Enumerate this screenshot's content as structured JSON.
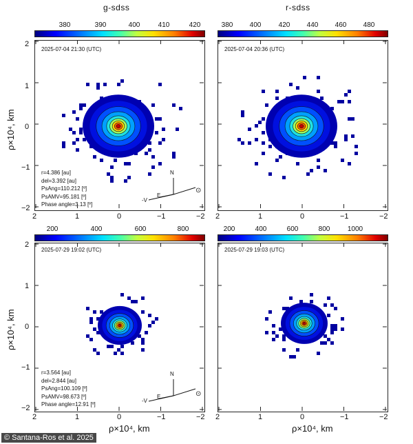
{
  "panels": [
    {
      "filter": "g-sdss",
      "cbar_ticks": [
        "380",
        "390",
        "400",
        "410",
        "420"
      ],
      "date": "2025-07-04 21:30 (UTC)",
      "info": [
        "r=4.386 [au]",
        "del=3.392 [au]",
        "PsAng=110.212 [º]",
        "PsAMV=95.181 [º]",
        "Phase angle=3.13 [º]"
      ],
      "compass": {
        "north": "N",
        "east": "E",
        "velocity": "-V",
        "sun": "⊙"
      }
    },
    {
      "filter": "r-sdss",
      "cbar_ticks": [
        "380",
        "400",
        "420",
        "440",
        "460",
        "480"
      ],
      "date": "2025-07-04 20:36 (UTC)",
      "info": [],
      "compass": null
    },
    {
      "filter": "",
      "cbar_ticks": [
        "200",
        "400",
        "600",
        "800"
      ],
      "date": "2025-07-29 19:02 (UTC)",
      "info": [
        "r=3.564 [au]",
        "del=2.844 [au]",
        "PsAng=100.109 [º]",
        "PsAMV=98.673 [º]",
        "Phase angle=12.91 [º]"
      ],
      "compass": {
        "north": "N",
        "east": "E",
        "velocity": "-V",
        "sun": "⊙"
      }
    },
    {
      "filter": "",
      "cbar_ticks": [
        "200",
        "400",
        "600",
        "800",
        "1000"
      ],
      "date": "2025-07-29 19:03 (UTC)",
      "info": [],
      "compass": null
    }
  ],
  "axes": {
    "y_ticks": [
      "2",
      "1",
      "0",
      "−1",
      "−2"
    ],
    "x_ticks": [
      "2",
      "1",
      "0",
      "−1",
      "−2"
    ],
    "ylabel": "ρ×10⁴, km",
    "xlabel": "ρ×10⁴, km"
  },
  "credit": "© Santana-Ros et al. 2025"
}
